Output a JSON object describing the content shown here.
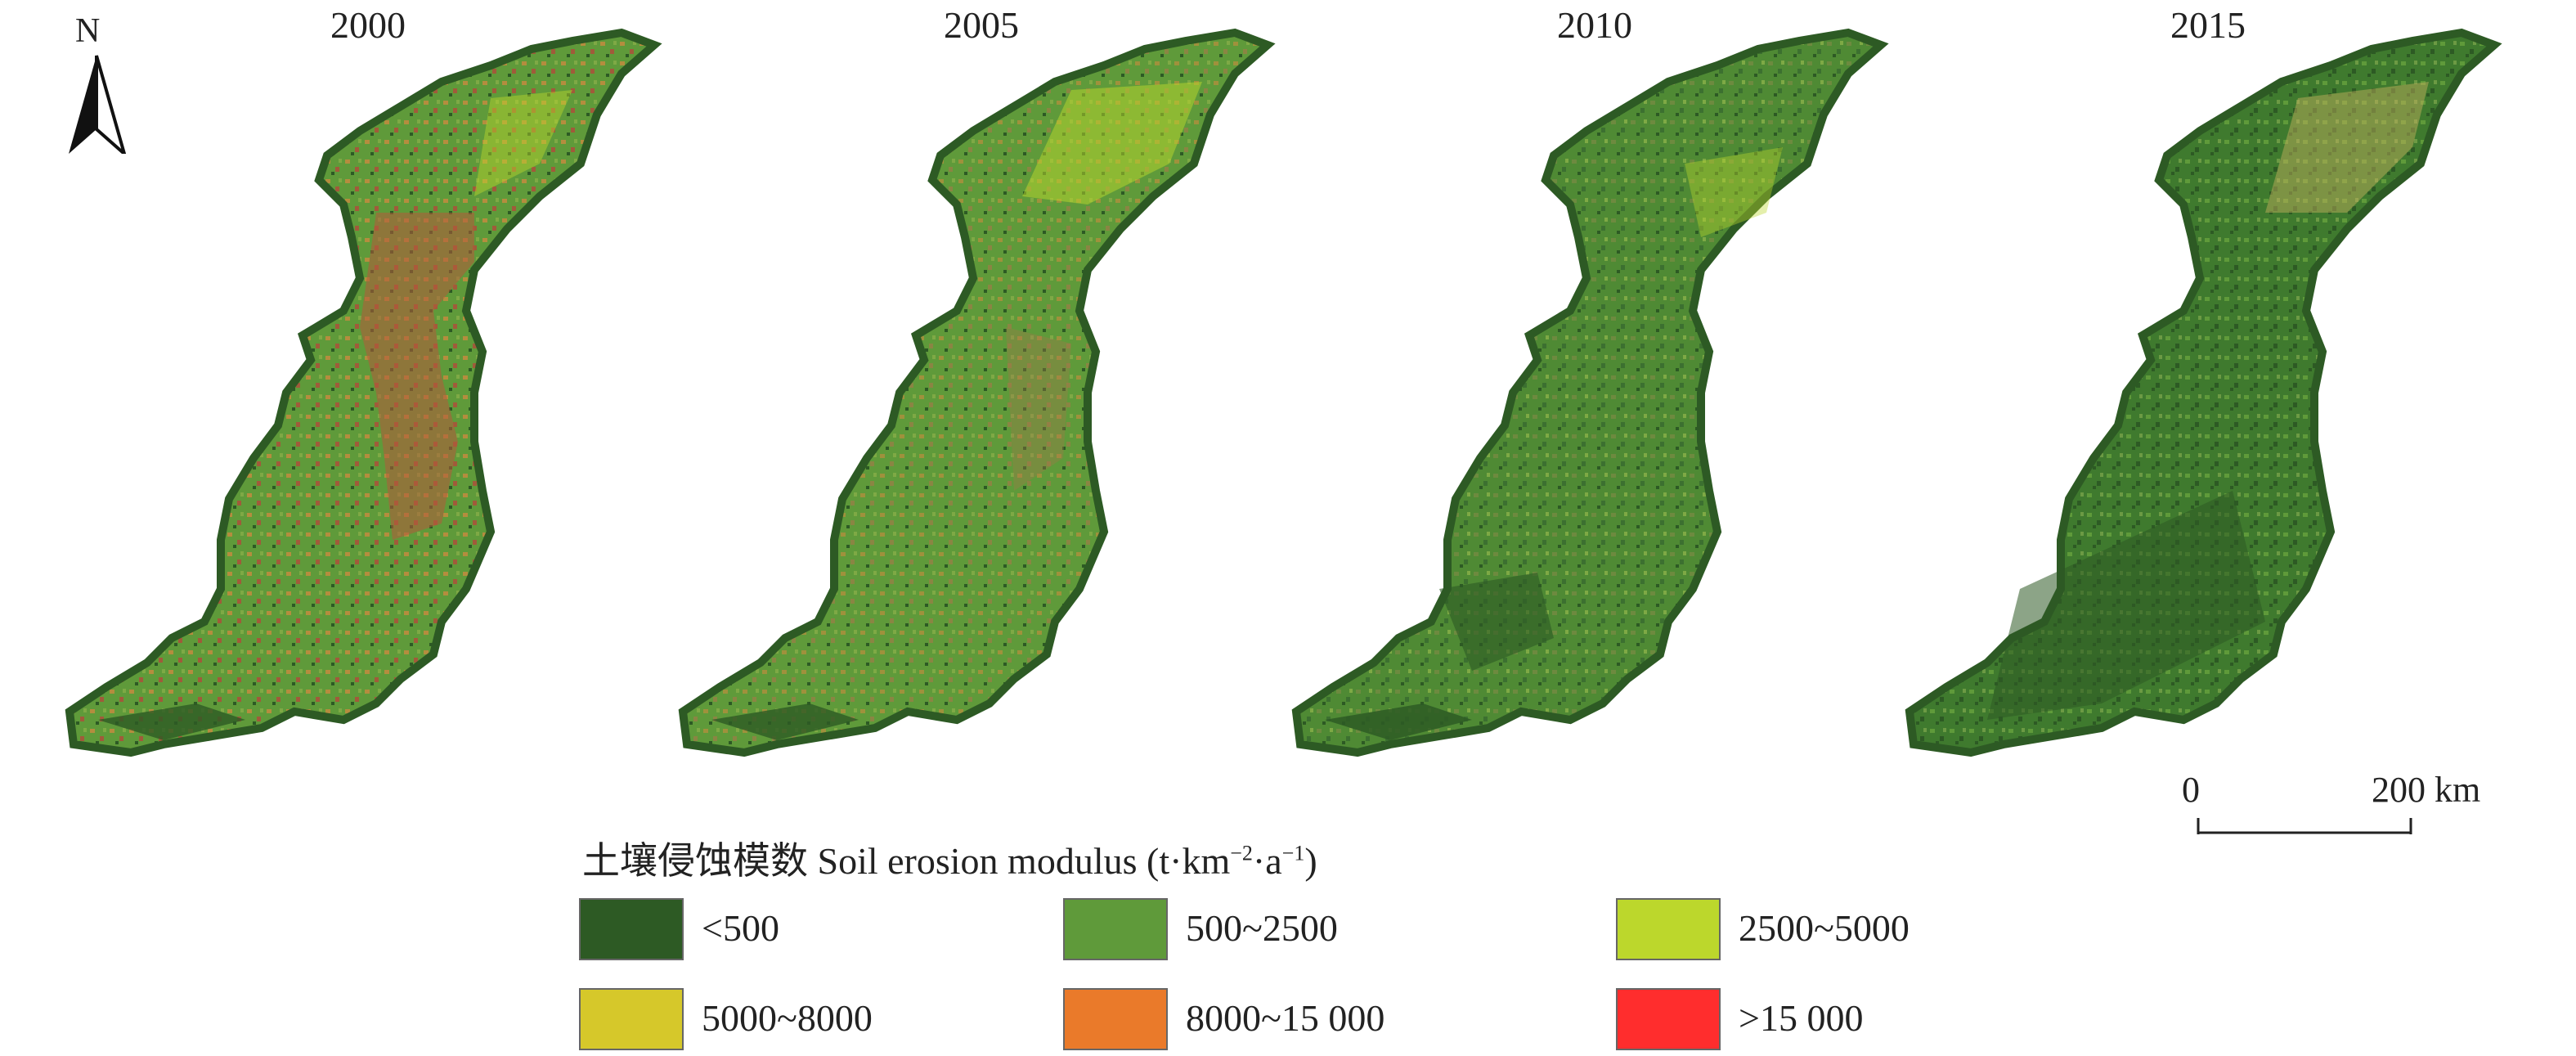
{
  "north_label": "N",
  "years": [
    "2000",
    "2005",
    "2010",
    "2015"
  ],
  "scale": {
    "start": "0",
    "end": "200 km"
  },
  "legend": {
    "title_cn": "土壤侵蚀模数",
    "title_en": "Soil erosion modulus",
    "title_unit": "(t·km",
    "title_unit_exp1": "−2",
    "title_unit_mid": "·a",
    "title_unit_exp2": "−1",
    "title_unit_end": ")",
    "classes": [
      {
        "label": "<500",
        "color": "#2d5a24"
      },
      {
        "label": "500~2500",
        "color": "#5f9a3a"
      },
      {
        "label": "2500~5000",
        "color": "#bcd72c"
      },
      {
        "label": "5000~8000",
        "color": "#d6c82a"
      },
      {
        "label": "8000~15 000",
        "color": "#ea7a2a"
      },
      {
        "label": ">15 000",
        "color": "#ff2d2d"
      }
    ]
  }
}
